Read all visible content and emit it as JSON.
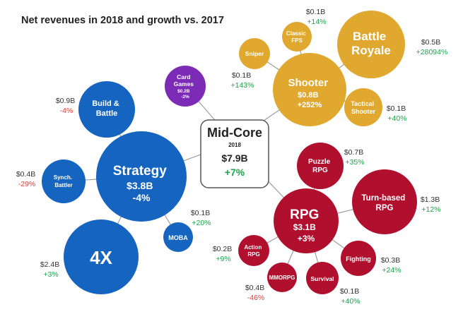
{
  "title": "Net revenues in 2018 and growth vs. 2017",
  "colors": {
    "strategy": "#1565c0",
    "shooter": "#e0a82e",
    "rpg": "#b0102e",
    "card_games": "#7b2bb5",
    "positive": "#1aa64a",
    "negative": "#e53935",
    "connector": "#9e9e9e"
  },
  "center": {
    "title": "Mid-Core",
    "year": "2018",
    "value": "$7.9B",
    "growth": "+7%"
  },
  "genres": {
    "strategy": {
      "name": "Strategy",
      "value": "$3.8B",
      "growth": "-4%"
    },
    "shooter": {
      "name": "Shooter",
      "value": "$0.8B",
      "growth": "+252%"
    },
    "rpg": {
      "name": "RPG",
      "value": "$3.1B",
      "growth": "+3%"
    },
    "card_games": {
      "line1": "Card",
      "line2": "Games",
      "value": "$0.2B",
      "growth": "-2%"
    }
  },
  "subgenres": {
    "build_battle": {
      "line1": "Build &",
      "line2": "Battle",
      "value": "$0.9B",
      "growth": "-4%"
    },
    "synch_battler": {
      "line1": "Synch.",
      "line2": "Battler",
      "value": "$0.4B",
      "growth": "-29%"
    },
    "four_x": {
      "name": "4X",
      "value": "$2.4B",
      "growth": "+3%"
    },
    "moba": {
      "name": "MOBA",
      "value": "$0.1B",
      "growth": "+20%"
    },
    "sniper": {
      "name": "Sniper",
      "value": "$0.1B",
      "growth": "+143%"
    },
    "classic_fps": {
      "line1": "Classic",
      "line2": "FPS",
      "value": "$0.1B",
      "growth": "+14%"
    },
    "battle_royale": {
      "line1": "Battle",
      "line2": "Royale",
      "value": "$0.5B",
      "growth": "+28094%"
    },
    "tactical_shooter": {
      "line1": "Tactical",
      "line2": "Shooter",
      "value": "$0.1B",
      "growth": "+40%"
    },
    "puzzle_rpg": {
      "line1": "Puzzle",
      "line2": "RPG",
      "value": "$0.7B",
      "growth": "+35%"
    },
    "turn_based_rpg": {
      "line1": "Turn-based",
      "line2": "RPG",
      "value": "$1.3B",
      "growth": "+12%"
    },
    "action_rpg": {
      "line1": "Action",
      "line2": "RPG",
      "value": "$0.2B",
      "growth": "+9%"
    },
    "fighting": {
      "name": "Fighting",
      "value": "$0.3B",
      "growth": "+24%"
    },
    "mmorpg": {
      "name": "MMORPG",
      "value": "$0.4B",
      "growth": "-46%"
    },
    "survival": {
      "name": "Survival",
      "value": "$0.1B",
      "growth": "+40%"
    }
  }
}
